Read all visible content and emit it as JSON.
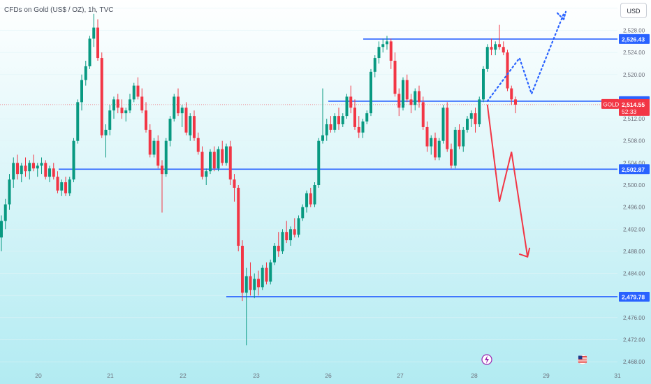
{
  "chart_title": "CFDs on Gold (US$ / OZ), 1h, TVC",
  "currency_button": "USD",
  "symbol_label": "GOLD",
  "colors": {
    "up": "#089981",
    "down": "#f23645",
    "level_line": "#2962ff",
    "price_badge": "#f23645",
    "background_top": "#ffffff",
    "background_bottom": "#b2ebf2"
  },
  "chart_data": {
    "type": "candlestick",
    "title": "CFDs on Gold (US$ / OZ), 1h, TVC",
    "currency": "USD",
    "ylim": [
      2466.5,
      2533.5
    ],
    "y_ticks": [
      "2,468.00",
      "2,472.00",
      "2,476.00",
      "2,480.00",
      "2,484.00",
      "2,488.00",
      "2,492.00",
      "2,496.00",
      "2,500.00",
      "2,504.00",
      "2,508.00",
      "2,512.00",
      "2,520.00",
      "2,524.00",
      "2,528.00",
      "2,532.00"
    ],
    "x_ticks": [
      "20",
      "21",
      "22",
      "23",
      "26",
      "27",
      "28",
      "29",
      "31"
    ],
    "horizontal_levels": [
      {
        "value": 2526.43,
        "label": "2,526.43"
      },
      {
        "value": 2515.18,
        "label": "2,515.18"
      },
      {
        "value": 2502.87,
        "label": "2,502.87"
      },
      {
        "value": 2479.78,
        "label": "2,479.78"
      }
    ],
    "current_price": {
      "value": 2514.55,
      "label": "2,514.55",
      "countdown": "52:33"
    },
    "candles": [
      [
        2490.5,
        2494.5,
        2488.0,
        2493.5
      ],
      [
        2493.5,
        2497.5,
        2492.0,
        2496.5
      ],
      [
        2496.5,
        2502.0,
        2495.5,
        2501.0
      ],
      [
        2501.0,
        2505.0,
        2499.5,
        2504.0
      ],
      [
        2504.0,
        2505.5,
        2501.0,
        2502.0
      ],
      [
        2502.0,
        2504.0,
        2500.5,
        2503.5
      ],
      [
        2503.5,
        2505.0,
        2501.5,
        2502.5
      ],
      [
        2502.5,
        2504.5,
        2501.0,
        2504.0
      ],
      [
        2504.0,
        2505.5,
        2502.5,
        2503.0
      ],
      [
        2503.0,
        2504.0,
        2501.5,
        2503.5
      ],
      [
        2503.5,
        2505.0,
        2502.0,
        2504.0
      ],
      [
        2504.0,
        2504.5,
        2501.0,
        2501.5
      ],
      [
        2501.5,
        2503.5,
        2500.5,
        2503.0
      ],
      [
        2503.0,
        2504.0,
        2501.0,
        2501.5
      ],
      [
        2501.5,
        2502.5,
        2498.5,
        2499.0
      ],
      [
        2499.0,
        2501.0,
        2498.0,
        2500.5
      ],
      [
        2500.5,
        2501.5,
        2498.0,
        2498.5
      ],
      [
        2498.5,
        2501.5,
        2498.0,
        2501.0
      ],
      [
        2501.0,
        2508.5,
        2500.5,
        2508.0
      ],
      [
        2508.0,
        2515.5,
        2507.5,
        2515.0
      ],
      [
        2515.0,
        2520.0,
        2513.5,
        2519.0
      ],
      [
        2519.0,
        2522.5,
        2518.0,
        2521.5
      ],
      [
        2521.5,
        2527.0,
        2521.0,
        2526.5
      ],
      [
        2526.5,
        2531.0,
        2525.0,
        2528.5
      ],
      [
        2528.5,
        2530.0,
        2522.5,
        2523.0
      ],
      [
        2523.0,
        2524.0,
        2508.5,
        2509.0
      ],
      [
        2509.0,
        2511.0,
        2505.0,
        2510.0
      ],
      [
        2510.0,
        2514.5,
        2509.0,
        2513.5
      ],
      [
        2513.5,
        2516.0,
        2512.0,
        2515.5
      ],
      [
        2515.5,
        2516.5,
        2513.0,
        2514.0
      ],
      [
        2514.0,
        2515.5,
        2512.0,
        2513.0
      ],
      [
        2513.0,
        2514.0,
        2511.5,
        2513.5
      ],
      [
        2513.5,
        2516.5,
        2513.0,
        2515.5
      ],
      [
        2515.5,
        2518.5,
        2515.0,
        2518.0
      ],
      [
        2518.0,
        2519.5,
        2515.5,
        2516.0
      ],
      [
        2516.0,
        2517.5,
        2513.0,
        2513.5
      ],
      [
        2513.5,
        2515.0,
        2509.5,
        2510.0
      ],
      [
        2510.0,
        2511.0,
        2505.0,
        2505.5
      ],
      [
        2505.5,
        2508.5,
        2505.0,
        2508.0
      ],
      [
        2508.0,
        2509.0,
        2503.0,
        2503.5
      ],
      [
        2503.5,
        2504.5,
        2495.0,
        2502.0
      ],
      [
        2502.0,
        2508.5,
        2501.5,
        2508.0
      ],
      [
        2508.0,
        2512.5,
        2507.0,
        2512.0
      ],
      [
        2512.0,
        2516.5,
        2511.5,
        2516.0
      ],
      [
        2516.0,
        2517.5,
        2512.5,
        2513.0
      ],
      [
        2513.0,
        2514.5,
        2510.5,
        2514.0
      ],
      [
        2514.0,
        2515.0,
        2509.0,
        2509.5
      ],
      [
        2509.0,
        2513.0,
        2508.0,
        2512.5
      ],
      [
        2512.5,
        2513.5,
        2508.0,
        2508.5
      ],
      [
        2508.5,
        2509.5,
        2505.5,
        2506.0
      ],
      [
        2506.0,
        2507.0,
        2501.0,
        2501.5
      ],
      [
        2501.5,
        2503.0,
        2500.0,
        2502.5
      ],
      [
        2502.5,
        2506.5,
        2502.0,
        2506.0
      ],
      [
        2506.0,
        2507.0,
        2502.5,
        2503.0
      ],
      [
        2503.0,
        2507.0,
        2502.5,
        2506.5
      ],
      [
        2506.5,
        2508.0,
        2503.5,
        2504.0
      ],
      [
        2504.0,
        2507.5,
        2503.5,
        2507.0
      ],
      [
        2507.0,
        2508.0,
        2500.0,
        2501.0
      ],
      [
        2501.0,
        2502.0,
        2497.0,
        2499.5
      ],
      [
        2499.5,
        2500.0,
        2488.0,
        2489.0
      ],
      [
        2489.0,
        2490.0,
        2479.0,
        2480.5
      ],
      [
        2480.5,
        2485.0,
        2471.0,
        2483.5
      ],
      [
        2483.5,
        2486.0,
        2480.0,
        2481.0
      ],
      [
        2481.0,
        2484.0,
        2479.5,
        2483.0
      ],
      [
        2483.0,
        2484.5,
        2480.0,
        2481.5
      ],
      [
        2481.5,
        2485.5,
        2481.0,
        2485.0
      ],
      [
        2485.0,
        2486.0,
        2482.0,
        2482.5
      ],
      [
        2482.5,
        2486.5,
        2482.0,
        2486.0
      ],
      [
        2486.0,
        2489.5,
        2485.5,
        2489.0
      ],
      [
        2489.0,
        2491.5,
        2487.0,
        2488.0
      ],
      [
        2488.0,
        2492.0,
        2487.5,
        2491.5
      ],
      [
        2491.5,
        2493.5,
        2489.5,
        2490.0
      ],
      [
        2490.0,
        2492.5,
        2489.0,
        2492.0
      ],
      [
        2492.0,
        2494.0,
        2490.5,
        2491.0
      ],
      [
        2491.0,
        2494.5,
        2490.5,
        2494.0
      ],
      [
        2494.0,
        2496.5,
        2493.5,
        2496.0
      ],
      [
        2496.0,
        2499.0,
        2495.0,
        2498.5
      ],
      [
        2498.5,
        2499.5,
        2496.0,
        2496.5
      ],
      [
        2496.5,
        2500.5,
        2496.0,
        2500.0
      ],
      [
        2500.0,
        2508.5,
        2499.5,
        2508.0
      ],
      [
        2508.0,
        2517.5,
        2507.5,
        2509.0
      ],
      [
        2509.0,
        2512.0,
        2508.0,
        2511.0
      ],
      [
        2511.0,
        2512.5,
        2509.5,
        2510.0
      ],
      [
        2510.0,
        2513.0,
        2509.5,
        2512.5
      ],
      [
        2512.5,
        2514.0,
        2510.0,
        2511.0
      ],
      [
        2511.0,
        2513.0,
        2510.5,
        2512.5
      ],
      [
        2512.5,
        2516.5,
        2512.0,
        2516.0
      ],
      [
        2516.0,
        2518.0,
        2513.0,
        2514.0
      ],
      [
        2514.0,
        2515.5,
        2510.0,
        2510.5
      ],
      [
        2510.5,
        2512.5,
        2508.5,
        2509.5
      ],
      [
        2509.5,
        2512.0,
        2508.5,
        2511.5
      ],
      [
        2511.5,
        2513.5,
        2511.0,
        2513.0
      ],
      [
        2513.0,
        2521.0,
        2512.5,
        2520.5
      ],
      [
        2520.5,
        2523.5,
        2519.5,
        2523.0
      ],
      [
        2523.0,
        2526.0,
        2522.0,
        2525.0
      ],
      [
        2525.0,
        2526.5,
        2524.0,
        2525.5
      ],
      [
        2525.5,
        2527.0,
        2524.5,
        2526.0
      ],
      [
        2526.0,
        2526.5,
        2521.0,
        2522.5
      ],
      [
        2522.5,
        2524.0,
        2516.0,
        2516.5
      ],
      [
        2516.5,
        2517.5,
        2512.5,
        2514.0
      ],
      [
        2514.0,
        2519.5,
        2513.5,
        2519.0
      ],
      [
        2519.0,
        2520.0,
        2515.0,
        2515.5
      ],
      [
        2515.5,
        2516.5,
        2513.0,
        2514.5
      ],
      [
        2514.5,
        2517.5,
        2513.5,
        2517.0
      ],
      [
        2517.0,
        2518.0,
        2514.0,
        2515.0
      ],
      [
        2515.0,
        2516.0,
        2510.0,
        2510.5
      ],
      [
        2510.5,
        2511.5,
        2506.0,
        2507.0
      ],
      [
        2507.0,
        2509.0,
        2505.5,
        2508.5
      ],
      [
        2508.5,
        2509.5,
        2504.5,
        2505.0
      ],
      [
        2505.0,
        2508.5,
        2504.5,
        2508.0
      ],
      [
        2508.0,
        2514.5,
        2507.5,
        2514.0
      ],
      [
        2514.0,
        2515.0,
        2506.0,
        2506.5
      ],
      [
        2506.5,
        2507.5,
        2503.0,
        2503.5
      ],
      [
        2503.5,
        2510.5,
        2503.0,
        2510.0
      ],
      [
        2510.0,
        2511.0,
        2506.5,
        2507.0
      ],
      [
        2507.0,
        2510.5,
        2506.0,
        2510.0
      ],
      [
        2510.0,
        2512.5,
        2509.5,
        2512.0
      ],
      [
        2512.0,
        2513.5,
        2510.5,
        2513.0
      ],
      [
        2513.0,
        2514.0,
        2509.5,
        2511.0
      ],
      [
        2511.0,
        2516.0,
        2510.5,
        2515.5
      ],
      [
        2515.5,
        2521.5,
        2515.0,
        2521.0
      ],
      [
        2521.0,
        2525.5,
        2520.5,
        2525.0
      ],
      [
        2525.0,
        2526.5,
        2523.5,
        2524.5
      ],
      [
        2524.5,
        2526.0,
        2523.5,
        2525.5
      ],
      [
        2525.5,
        2529.0,
        2524.5,
        2525.0
      ],
      [
        2525.0,
        2526.0,
        2523.5,
        2524.0
      ],
      [
        2524.0,
        2524.5,
        2517.0,
        2517.5
      ],
      [
        2517.5,
        2518.0,
        2514.5,
        2515.5
      ],
      [
        2515.5,
        2516.0,
        2513.0,
        2514.55
      ]
    ],
    "projection_bullish_dotted": [
      [
        2515.18,
        121
      ],
      [
        2523.0,
        129
      ],
      [
        2516.5,
        132
      ],
      [
        2531.0,
        140
      ]
    ],
    "projection_bearish": [
      [
        2514.55,
        121
      ],
      [
        2497.0,
        124
      ],
      [
        2506.0,
        127
      ],
      [
        2487.0,
        131
      ]
    ]
  }
}
